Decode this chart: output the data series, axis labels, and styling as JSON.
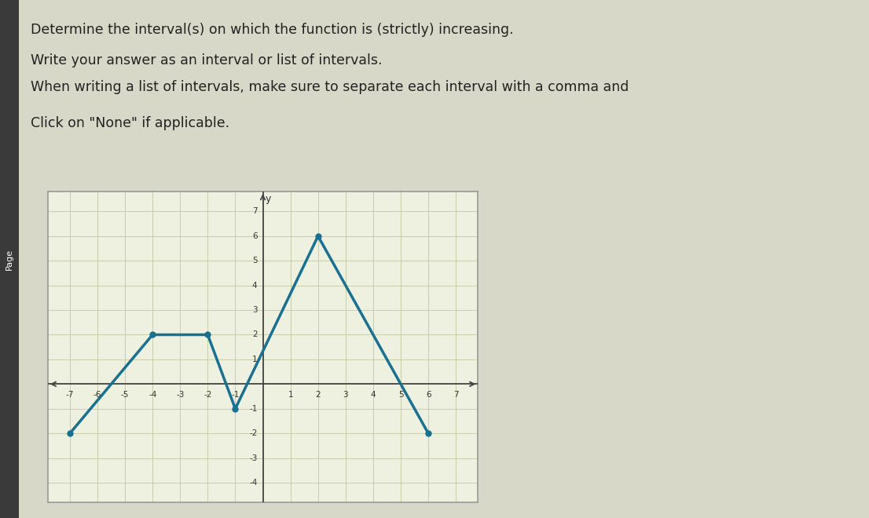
{
  "points": [
    [
      -7,
      -2
    ],
    [
      -4,
      2
    ],
    [
      -2,
      2
    ],
    [
      -1,
      -1
    ],
    [
      2,
      6
    ],
    [
      6,
      -2
    ]
  ],
  "dot_points": [
    [
      -7,
      -2
    ],
    [
      -4,
      2
    ],
    [
      -2,
      2
    ],
    [
      -1,
      -1
    ],
    [
      2,
      6
    ],
    [
      6,
      -2
    ]
  ],
  "line_color": "#1a7090",
  "dot_color": "#1a7090",
  "background_color": "#eef0e0",
  "grid_color": "#c0c8a0",
  "axis_color": "#444444",
  "fig_bg": "#d8d8c8",
  "xlim": [
    -7.8,
    7.8
  ],
  "ylim": [
    -4.8,
    7.8
  ],
  "xticks": [
    -7,
    -6,
    -5,
    -4,
    -3,
    -2,
    -1,
    1,
    2,
    3,
    4,
    5,
    6,
    7
  ],
  "yticks": [
    -4,
    -3,
    -2,
    -1,
    1,
    2,
    3,
    4,
    5,
    6,
    7
  ],
  "ylabel": "y",
  "text_lines": [
    "Determine the interval(s) on which the function is (strictly) increasing.",
    "Write your answer as an interval or list of intervals.",
    "When writing a list of intervals, make sure to separate each interval with a comma and",
    "Click on \"None\" if applicable."
  ],
  "underline_words": [
    "interval(s)",
    "increasing"
  ],
  "text_color": "#222222",
  "text_fontsize": 12.5,
  "page_label": "Page"
}
